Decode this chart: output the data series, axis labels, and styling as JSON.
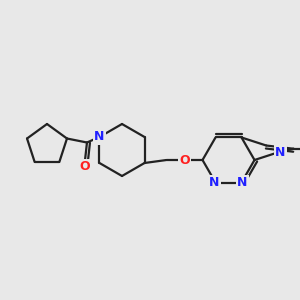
{
  "bg_color": "#e8e8e8",
  "bond_color": "#222222",
  "N_color": "#2020ff",
  "O_color": "#ff2020",
  "lw": 1.6,
  "figsize": [
    3.0,
    3.0
  ],
  "dpi": 100,
  "xlim": [
    0,
    300
  ],
  "ylim": [
    0,
    300
  ]
}
